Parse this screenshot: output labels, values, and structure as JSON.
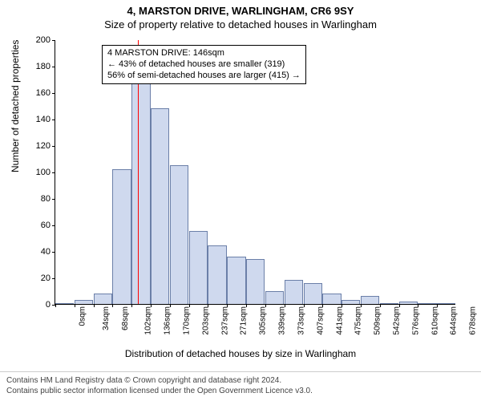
{
  "title": "4, MARSTON DRIVE, WARLINGHAM, CR6 9SY",
  "subtitle": "Size of property relative to detached houses in Warlingham",
  "ylabel": "Number of detached properties",
  "xlabel": "Distribution of detached houses by size in Warlingham",
  "chart": {
    "type": "histogram",
    "ylim": [
      0,
      200
    ],
    "ytick_step": 20,
    "x_categories": [
      "0sqm",
      "34sqm",
      "68sqm",
      "102sqm",
      "136sqm",
      "170sqm",
      "203sqm",
      "237sqm",
      "271sqm",
      "305sqm",
      "339sqm",
      "373sqm",
      "407sqm",
      "441sqm",
      "475sqm",
      "509sqm",
      "542sqm",
      "576sqm",
      "610sqm",
      "644sqm",
      "678sqm"
    ],
    "values": [
      0,
      3,
      8,
      102,
      179,
      148,
      105,
      55,
      44,
      36,
      34,
      10,
      18,
      16,
      8,
      3,
      6,
      0,
      2,
      0,
      0
    ],
    "bar_fill": "#cfd9ee",
    "bar_stroke": "#6b7fa8",
    "background_color": "#ffffff",
    "marker_value_sqm": 146,
    "marker_color": "#ff0000"
  },
  "annotation": {
    "line1": "4 MARSTON DRIVE: 146sqm",
    "line2": "← 43% of detached houses are smaller (319)",
    "line3": "56% of semi-detached houses are larger (415) →"
  },
  "footer": {
    "line1": "Contains HM Land Registry data © Crown copyright and database right 2024.",
    "line2": "Contains public sector information licensed under the Open Government Licence v3.0."
  }
}
